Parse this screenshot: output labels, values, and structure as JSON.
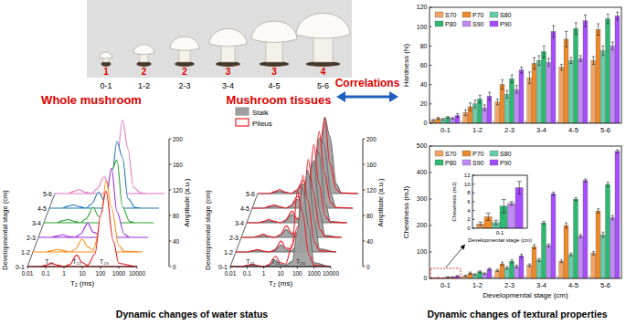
{
  "chart_data": [
    {
      "type": "bar",
      "y_label": "Hardness (N)",
      "categories": [
        "0-1",
        "1-2",
        "2-3",
        "3-4",
        "4-5",
        "5-6"
      ],
      "ylim": [
        0,
        120
      ],
      "yticks": [
        0,
        20,
        40,
        60,
        80,
        100,
        120
      ],
      "legend": "top-left",
      "series": [
        {
          "name": "S70",
          "color": "#f4a460",
          "values": [
            3,
            11,
            22,
            47,
            58,
            65
          ],
          "errors": [
            1,
            3,
            3,
            6,
            3,
            4
          ]
        },
        {
          "name": "P70",
          "color": "#ef8a2a",
          "values": [
            5,
            17,
            40,
            62,
            87,
            97
          ],
          "errors": [
            1,
            4,
            5,
            6,
            8,
            6
          ]
        },
        {
          "name": "S80",
          "color": "#66cdaa",
          "values": [
            4,
            20,
            30,
            65,
            65,
            75
          ],
          "errors": [
            1,
            4,
            4,
            5,
            3,
            5
          ]
        },
        {
          "name": "P80",
          "color": "#2eb872",
          "values": [
            6,
            25,
            46,
            74,
            98,
            108
          ],
          "errors": [
            1,
            4,
            4,
            6,
            6,
            5
          ]
        },
        {
          "name": "S90",
          "color": "#c08af5",
          "values": [
            5,
            16,
            35,
            63,
            67,
            80
          ],
          "errors": [
            1,
            3,
            4,
            4,
            3,
            4
          ]
        },
        {
          "name": "P90",
          "color": "#a64dff",
          "values": [
            8,
            28,
            55,
            95,
            106,
            111
          ],
          "errors": [
            2,
            4,
            3,
            6,
            6,
            4
          ]
        }
      ]
    },
    {
      "type": "bar",
      "x_label": "Developmental stage (cm)",
      "y_label": "Chewiness (mJ)",
      "categories": [
        "0-1",
        "1-2",
        "2-3",
        "3-4",
        "4-5",
        "5-6"
      ],
      "ylim": [
        0,
        500
      ],
      "yticks": [
        0,
        100,
        200,
        300,
        400,
        500
      ],
      "legend": "top-left",
      "series": [
        {
          "name": "S70",
          "color": "#f4a460",
          "values": [
            1.0,
            10,
            30,
            50,
            65,
            95
          ],
          "errors": [
            0.4,
            2,
            4,
            5,
            5,
            6
          ]
        },
        {
          "name": "P70",
          "color": "#ef8a2a",
          "values": [
            2.6,
            20,
            55,
            120,
            200,
            255
          ],
          "errors": [
            0.8,
            4,
            6,
            8,
            10,
            8
          ]
        },
        {
          "name": "S80",
          "color": "#66cdaa",
          "values": [
            1.3,
            15,
            40,
            70,
            90,
            165
          ],
          "errors": [
            0.5,
            3,
            5,
            6,
            6,
            10
          ]
        },
        {
          "name": "P80",
          "color": "#2eb872",
          "values": [
            5.0,
            25,
            65,
            210,
            300,
            355
          ],
          "errors": [
            1.5,
            4,
            6,
            6,
            6,
            8
          ]
        },
        {
          "name": "S90",
          "color": "#c08af5",
          "values": [
            5.6,
            18,
            45,
            125,
            160,
            230
          ],
          "errors": [
            0.4,
            3,
            5,
            6,
            6,
            8
          ]
        },
        {
          "name": "P90",
          "color": "#a64dff",
          "values": [
            9.2,
            35,
            85,
            320,
            370,
            480
          ],
          "errors": [
            1.4,
            4,
            6,
            6,
            6,
            6
          ]
        }
      ]
    },
    {
      "type": "bar",
      "x_label": "Developmental stage (cm)",
      "y_label": "Chewiness (mJ)",
      "categories": [
        "0-1"
      ],
      "ylim": [
        0,
        12
      ],
      "yticks": [
        0,
        2,
        4,
        6,
        8,
        10,
        12
      ],
      "series": [
        {
          "color": "#f4a460",
          "values": [
            1.0
          ],
          "errors": [
            0.4
          ]
        },
        {
          "color": "#ef8a2a",
          "values": [
            2.6
          ],
          "errors": [
            0.8
          ]
        },
        {
          "color": "#66cdaa",
          "values": [
            1.3
          ],
          "errors": [
            0.5
          ]
        },
        {
          "color": "#2eb872",
          "values": [
            5.0
          ],
          "errors": [
            1.5
          ]
        },
        {
          "color": "#c08af5",
          "values": [
            5.6
          ],
          "errors": [
            0.4
          ]
        },
        {
          "color": "#a64dff",
          "values": [
            9.2
          ],
          "errors": [
            1.4
          ]
        }
      ]
    },
    {
      "type": "ridgeline",
      "title": "Whole mushroom",
      "x_label": "T₂ (ms)",
      "y_label": "Amplitude (a.u.)",
      "z_label": "Developmental stage (cm)",
      "log": "x",
      "xlim": [
        0.01,
        10000
      ],
      "xticks": [
        0.01,
        0.1,
        1,
        10,
        100,
        1000,
        10000
      ],
      "ylim": [
        0,
        200
      ],
      "yticks": [
        0,
        40,
        80,
        120,
        160,
        200
      ],
      "annotations": [
        "T₂₁",
        "T₂₂",
        "T₂₃"
      ],
      "categories": [
        "0-1",
        "1-2",
        "2-3",
        "3-4",
        "4-5",
        "5-6"
      ],
      "colors": [
        "#e41a1c",
        "#ff8c1a",
        "#9b30d9",
        "#2ca02c",
        "#1f77b4",
        "#e377c2"
      ],
      "x": [
        0.01,
        0.05,
        0.1,
        0.2,
        0.5,
        1,
        2,
        5,
        10,
        20,
        50,
        100,
        200,
        500,
        1000,
        10000
      ],
      "values": [
        [
          0,
          0,
          2,
          5,
          2,
          0,
          3,
          18,
          6,
          2,
          20,
          80,
          118,
          40,
          5,
          0
        ],
        [
          0,
          0,
          2,
          4,
          2,
          0,
          4,
          20,
          8,
          3,
          40,
          112,
          70,
          10,
          1,
          0
        ],
        [
          0,
          0,
          2,
          4,
          1,
          0,
          5,
          22,
          8,
          5,
          60,
          108,
          40,
          5,
          0,
          0
        ],
        [
          0,
          0,
          3,
          5,
          2,
          0,
          6,
          24,
          10,
          8,
          82,
          98,
          25,
          2,
          0,
          0
        ],
        [
          0,
          0,
          3,
          5,
          2,
          0,
          6,
          25,
          12,
          15,
          104,
          80,
          15,
          1,
          0,
          0
        ],
        [
          0,
          0,
          3,
          6,
          2,
          0,
          7,
          26,
          12,
          20,
          115,
          70,
          10,
          1,
          0,
          0
        ]
      ]
    },
    {
      "type": "ridgeline",
      "title": "Mushroom tissues",
      "x_label": "T₂ (ms)",
      "y_label": "Amplitude (a.u.)",
      "z_label": "Developmental stage (cm)",
      "log": "x",
      "xlim": [
        0.01,
        10000
      ],
      "xticks": [
        0.01,
        0.1,
        1,
        10,
        100,
        1000,
        10000
      ],
      "ylim": [
        0,
        200
      ],
      "yticks": [
        0,
        40,
        80,
        120,
        160,
        200
      ],
      "annotations": [
        "T₂₁",
        "T₂₂",
        "T₂₃"
      ],
      "legend": "top-left",
      "categories": [
        "0-1",
        "1-2",
        "2-3",
        "3-4",
        "4-5",
        "5-6"
      ],
      "x": [
        0.01,
        0.05,
        0.1,
        0.2,
        0.5,
        1,
        2,
        5,
        10,
        20,
        50,
        100,
        200,
        500,
        1000,
        10000
      ],
      "series": [
        {
          "name": "Stalk",
          "color": "#9e9e9e",
          "type": "area",
          "values": [
            [
              0,
              0,
              1,
              3,
              1,
              0,
              2,
              10,
              4,
              2,
              8,
              55,
              125,
              60,
              6,
              0
            ],
            [
              0,
              0,
              1,
              3,
              1,
              0,
              2,
              11,
              4,
              2,
              10,
              65,
              128,
              50,
              5,
              0
            ],
            [
              0,
              0,
              1,
              3,
              1,
              0,
              3,
              12,
              5,
              3,
              14,
              80,
              120,
              40,
              3,
              0
            ],
            [
              0,
              0,
              2,
              3,
              1,
              0,
              3,
              13,
              5,
              3,
              18,
              95,
              110,
              30,
              2,
              0
            ],
            [
              0,
              0,
              2,
              4,
              1,
              0,
              3,
              14,
              6,
              4,
              24,
              110,
              100,
              22,
              1,
              0
            ],
            [
              0,
              0,
              2,
              4,
              1,
              0,
              4,
              15,
              6,
              5,
              30,
              120,
              90,
              15,
              1,
              0
            ]
          ]
        },
        {
          "name": "Pileus",
          "color": "#e8202a",
          "type": "line",
          "values": [
            [
              0,
              0,
              2,
              4,
              1,
              0,
              3,
              16,
              6,
              4,
              35,
              118,
              85,
              18,
              2,
              0
            ],
            [
              0,
              0,
              2,
              4,
              1,
              0,
              3,
              17,
              6,
              5,
              40,
              120,
              80,
              15,
              2,
              0
            ],
            [
              0,
              0,
              2,
              5,
              1,
              0,
              4,
              18,
              7,
              6,
              48,
              122,
              70,
              12,
              1,
              0
            ],
            [
              0,
              0,
              2,
              5,
              2,
              0,
              4,
              18,
              7,
              7,
              55,
              122,
              62,
              10,
              1,
              0
            ],
            [
              0,
              0,
              3,
              5,
              2,
              0,
              4,
              19,
              8,
              8,
              62,
              120,
              55,
              8,
              1,
              0
            ],
            [
              0,
              0,
              3,
              6,
              2,
              0,
              5,
              20,
              8,
              9,
              70,
              118,
              48,
              6,
              1,
              0
            ]
          ]
        }
      ]
    }
  ],
  "photo": {
    "stages": [
      "0-1",
      "1-2",
      "2-3",
      "3-4",
      "4-5",
      "5-6"
    ],
    "grades": [
      "1",
      "2",
      "2",
      "3",
      "3",
      "4"
    ]
  },
  "figure": {
    "correlation_label": "Correlations",
    "water_caption": "Dynamic changes of water status",
    "texture_caption": "Dynamic changes of textural properties"
  }
}
